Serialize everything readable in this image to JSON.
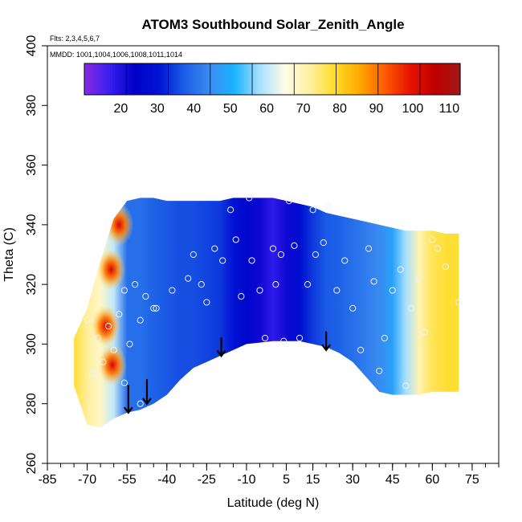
{
  "chart_data": {
    "type": "heatmap",
    "title": "ATOM3 Southbound Solar_Zenith_Angle",
    "flights_note": "Flts: 2,3,4,5,6,7",
    "dates_note": "MMDD: 1001,1004,1006,1008,1011,1014",
    "xlabel": "Latitude (deg N)",
    "ylabel": "Theta (C)",
    "xlim": [
      -85,
      85
    ],
    "ylim": [
      260,
      400
    ],
    "x_ticks": [
      -85,
      -70,
      -55,
      -40,
      -25,
      -10,
      5,
      15,
      30,
      45,
      60,
      75
    ],
    "x_minor_ticks": [
      -85,
      -80,
      -75,
      -70,
      -65,
      -60,
      -55,
      -50,
      -45,
      -40,
      -35,
      -30,
      -25,
      -20,
      -15,
      -10,
      -5,
      0,
      5,
      10,
      15,
      20,
      25,
      30,
      35,
      40,
      45,
      50,
      55,
      60,
      65,
      70,
      75,
      80,
      85
    ],
    "y_ticks": [
      260,
      280,
      300,
      320,
      340,
      360,
      380,
      400
    ],
    "colorbar": {
      "range": [
        10,
        113
      ],
      "tick_values": [
        20,
        30,
        40,
        50,
        60,
        70,
        80,
        90,
        100,
        110
      ],
      "segment_breaks": [
        10,
        21.5,
        33,
        44.5,
        56,
        67.5,
        79,
        90.5,
        102,
        113
      ],
      "colors": [
        "#8a2be2",
        "#3a1ff0",
        "#0000c8",
        "#0014d4",
        "#1c5ee6",
        "#3a8cf0",
        "#1ab4ff",
        "#a8e0ff",
        "#fffce8",
        "#fff0a0",
        "#ffdc28",
        "#ffa800",
        "#ff5a00",
        "#e61400",
        "#c00000",
        "#a01818"
      ]
    },
    "field": {
      "description": "Solar zenith angle (deg) interpolated along latitude over the sampled theta range",
      "lat": [
        -75,
        -70,
        -65,
        -60,
        -55,
        -50,
        -45,
        -40,
        -35,
        -30,
        -25,
        -20,
        -15,
        -10,
        -5,
        0,
        5,
        10,
        15,
        20,
        25,
        30,
        35,
        40,
        45,
        50,
        55,
        60,
        65,
        70
      ],
      "theta_bottom": [
        286,
        273,
        272,
        275,
        277,
        278,
        280,
        283,
        288,
        292,
        294,
        296,
        298,
        300,
        300.5,
        301,
        301,
        301,
        300,
        299,
        297,
        294,
        289,
        284,
        283,
        283,
        283,
        284,
        284,
        284
      ],
      "theta_top": [
        302,
        312,
        328,
        342,
        348,
        349,
        349,
        348,
        348,
        348,
        348,
        348,
        349,
        349,
        349,
        349,
        348,
        347,
        346,
        344,
        343,
        342,
        341,
        340,
        339,
        338,
        338,
        338,
        337,
        337
      ],
      "value": [
        78,
        72,
        68,
        60,
        40,
        40,
        38,
        37,
        36,
        36,
        35,
        34,
        30,
        26,
        22,
        18,
        22,
        28,
        34,
        37,
        38,
        40,
        42,
        44,
        48,
        58,
        70,
        76,
        78,
        78
      ]
    },
    "hotspots": [
      {
        "lat": -60.5,
        "theta": 293,
        "value": 103
      },
      {
        "lat": -63,
        "theta": 306,
        "value": 98
      },
      {
        "lat": -61,
        "theta": 325,
        "value": 95
      },
      {
        "lat": -58,
        "theta": 340,
        "value": 108
      }
    ],
    "sample_points": [
      {
        "lat": -68,
        "theta": 290
      },
      {
        "lat": -64,
        "theta": 294
      },
      {
        "lat": -60,
        "theta": 298
      },
      {
        "lat": -66,
        "theta": 302
      },
      {
        "lat": -62,
        "theta": 306
      },
      {
        "lat": -58,
        "theta": 310
      },
      {
        "lat": -70,
        "theta": 308
      },
      {
        "lat": -56,
        "theta": 318
      },
      {
        "lat": -52,
        "theta": 320
      },
      {
        "lat": -48,
        "theta": 316
      },
      {
        "lat": -45,
        "theta": 312
      },
      {
        "lat": -50,
        "theta": 308
      },
      {
        "lat": -54,
        "theta": 300
      },
      {
        "lat": -56,
        "theta": 287
      },
      {
        "lat": -50,
        "theta": 280
      },
      {
        "lat": -44,
        "theta": 312
      },
      {
        "lat": -38,
        "theta": 318
      },
      {
        "lat": -32,
        "theta": 322
      },
      {
        "lat": -30,
        "theta": 330
      },
      {
        "lat": -27,
        "theta": 320
      },
      {
        "lat": -25,
        "theta": 314
      },
      {
        "lat": -22,
        "theta": 332
      },
      {
        "lat": -19,
        "theta": 328
      },
      {
        "lat": -16,
        "theta": 345
      },
      {
        "lat": -14,
        "theta": 335
      },
      {
        "lat": -12,
        "theta": 316
      },
      {
        "lat": -9,
        "theta": 349
      },
      {
        "lat": -8,
        "theta": 328
      },
      {
        "lat": -5,
        "theta": 318
      },
      {
        "lat": -3,
        "theta": 302
      },
      {
        "lat": 0,
        "theta": 332
      },
      {
        "lat": 1,
        "theta": 320
      },
      {
        "lat": 3,
        "theta": 330
      },
      {
        "lat": 4,
        "theta": 301
      },
      {
        "lat": 6,
        "theta": 348
      },
      {
        "lat": 8,
        "theta": 333
      },
      {
        "lat": 10,
        "theta": 302
      },
      {
        "lat": 13,
        "theta": 320
      },
      {
        "lat": 15,
        "theta": 345
      },
      {
        "lat": 16,
        "theta": 330
      },
      {
        "lat": 19,
        "theta": 334
      },
      {
        "lat": 21,
        "theta": 346
      },
      {
        "lat": 24,
        "theta": 318
      },
      {
        "lat": 27,
        "theta": 328
      },
      {
        "lat": 30,
        "theta": 312
      },
      {
        "lat": 33,
        "theta": 298
      },
      {
        "lat": 36,
        "theta": 332
      },
      {
        "lat": 38,
        "theta": 321
      },
      {
        "lat": 40,
        "theta": 291
      },
      {
        "lat": 42,
        "theta": 302
      },
      {
        "lat": 45,
        "theta": 318
      },
      {
        "lat": 48,
        "theta": 325
      },
      {
        "lat": 50,
        "theta": 286
      },
      {
        "lat": 52,
        "theta": 312
      },
      {
        "lat": 55,
        "theta": 322
      },
      {
        "lat": 57,
        "theta": 304
      },
      {
        "lat": 60,
        "theta": 335
      },
      {
        "lat": 62,
        "theta": 332
      },
      {
        "lat": 65,
        "theta": 326
      },
      {
        "lat": 70,
        "theta": 314
      }
    ],
    "arrows": [
      {
        "lat": -54.5,
        "theta_from": 286,
        "theta_to": 277
      },
      {
        "lat": -47.5,
        "theta_from": 288,
        "theta_to": 280
      },
      {
        "lat": -19.5,
        "theta_from": 302,
        "theta_to": 296
      },
      {
        "lat": 20,
        "theta_from": 304,
        "theta_to": 298
      }
    ]
  }
}
